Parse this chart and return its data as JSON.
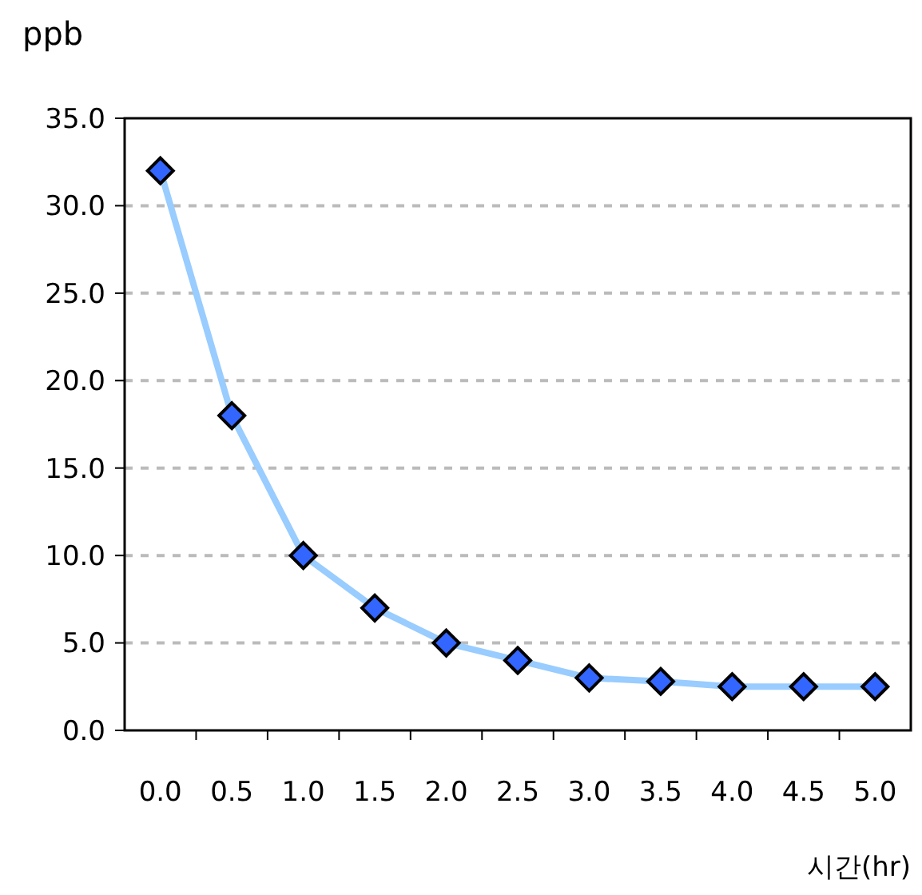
{
  "chart_data": {
    "type": "line",
    "ylabel": "ppb",
    "xlabel": "시간(hr)",
    "categories": [
      "0.0",
      "0.5",
      "1.0",
      "1.5",
      "2.0",
      "2.5",
      "3.0",
      "3.5",
      "4.0",
      "4.5",
      "5.0"
    ],
    "series": [
      {
        "color": "#99ccff",
        "values": [
          32,
          18,
          10,
          7,
          5,
          4,
          3,
          2.8,
          2.5,
          2.5,
          2.5
        ]
      }
    ],
    "ylim": [
      0,
      35
    ],
    "yticks": [
      {
        "value": 0,
        "label": "0.0"
      },
      {
        "value": 5,
        "label": "5.0"
      },
      {
        "value": 10,
        "label": "10.0"
      },
      {
        "value": 15,
        "label": "15.0"
      },
      {
        "value": 20,
        "label": "20.0"
      },
      {
        "value": 25,
        "label": "25.0"
      },
      {
        "value": 30,
        "label": "30.0"
      },
      {
        "value": 35,
        "label": "35.0"
      }
    ],
    "grid": "y",
    "marker": "diamond",
    "line_style": "solid"
  }
}
